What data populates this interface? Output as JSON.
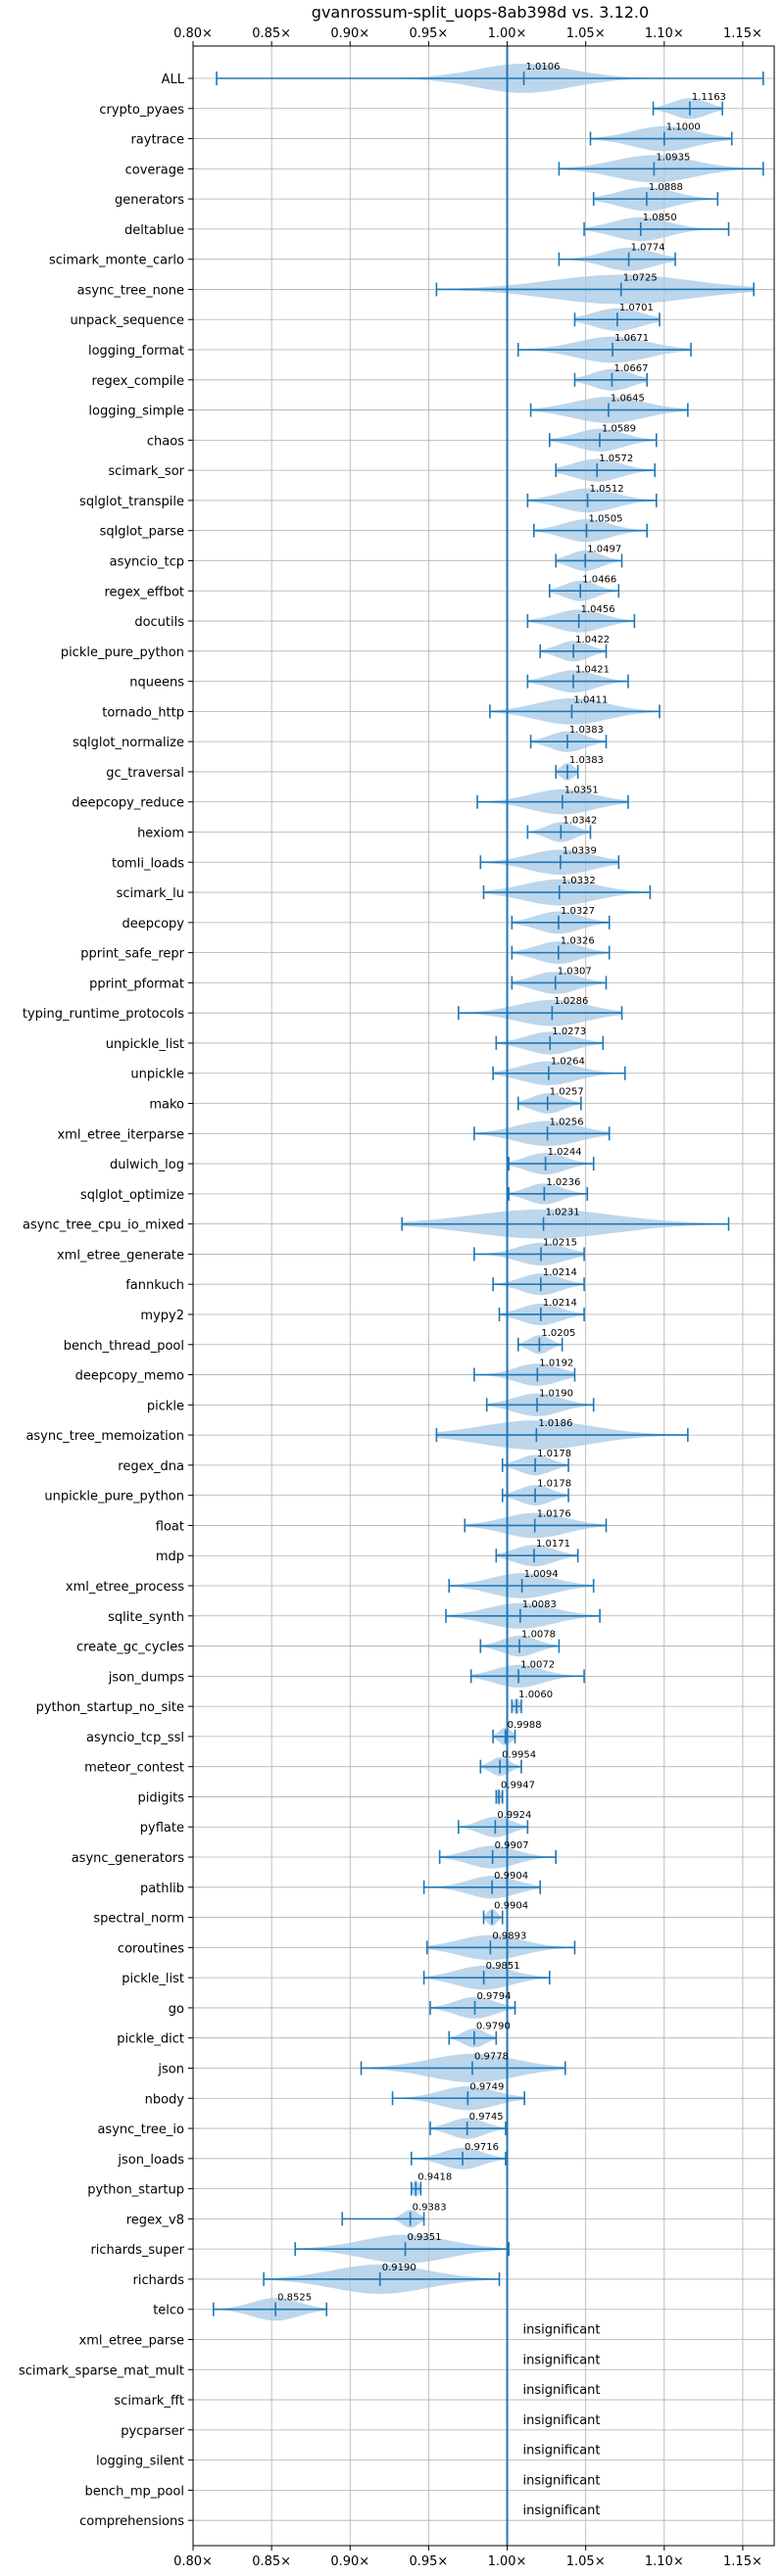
{
  "chart_data": {
    "type": "violin",
    "title": "gvanrossum-split_uops-8ab398d vs. 3.12.0",
    "xlim": [
      0.8,
      1.17
    ],
    "x_ticks": [
      0.8,
      0.85,
      0.9,
      0.95,
      1.0,
      1.05,
      1.1,
      1.15
    ],
    "x_tick_labels": [
      "0.80×",
      "0.85×",
      "0.90×",
      "0.95×",
      "1.00×",
      "1.05×",
      "1.10×",
      "1.15×"
    ],
    "reference_line": 1.0,
    "grid": true,
    "colors": {
      "violin": "#a6c8e6",
      "whisker": "#1f77b4",
      "reference": "#1f77b4",
      "grid": "#b0b0b0"
    },
    "rows": [
      {
        "name": "ALL",
        "value": 1.0106,
        "min": 0.815,
        "max": 1.163,
        "spread": 0.06,
        "label": "1.0106"
      },
      {
        "name": "crypto_pyaes",
        "value": 1.1163,
        "min": 1.093,
        "max": 1.137,
        "spread": 0.022,
        "label": "1.1163"
      },
      {
        "name": "raytrace",
        "value": 1.1,
        "min": 1.053,
        "max": 1.143,
        "spread": 0.04,
        "label": "1.1000"
      },
      {
        "name": "coverage",
        "value": 1.0935,
        "min": 1.033,
        "max": 1.163,
        "spread": 0.05,
        "label": "1.0935"
      },
      {
        "name": "generators",
        "value": 1.0888,
        "min": 1.055,
        "max": 1.134,
        "spread": 0.035,
        "label": "1.0888"
      },
      {
        "name": "deltablue",
        "value": 1.085,
        "min": 1.049,
        "max": 1.141,
        "spread": 0.035,
        "label": "1.0850"
      },
      {
        "name": "scimark_monte_carlo",
        "value": 1.0774,
        "min": 1.033,
        "max": 1.107,
        "spread": 0.032,
        "label": "1.0774"
      },
      {
        "name": "async_tree_none",
        "value": 1.0725,
        "min": 0.955,
        "max": 1.157,
        "spread": 0.09,
        "label": "1.0725"
      },
      {
        "name": "unpack_sequence",
        "value": 1.0701,
        "min": 1.043,
        "max": 1.097,
        "spread": 0.03,
        "label": "1.0701"
      },
      {
        "name": "logging_format",
        "value": 1.0671,
        "min": 1.007,
        "max": 1.117,
        "spread": 0.045,
        "label": "1.0671"
      },
      {
        "name": "regex_compile",
        "value": 1.0667,
        "min": 1.043,
        "max": 1.089,
        "spread": 0.025,
        "label": "1.0667"
      },
      {
        "name": "logging_simple",
        "value": 1.0645,
        "min": 1.015,
        "max": 1.115,
        "spread": 0.045,
        "label": "1.0645"
      },
      {
        "name": "chaos",
        "value": 1.0589,
        "min": 1.027,
        "max": 1.095,
        "spread": 0.03,
        "label": "1.0589"
      },
      {
        "name": "scimark_sor",
        "value": 1.0572,
        "min": 1.031,
        "max": 1.094,
        "spread": 0.03,
        "label": "1.0572"
      },
      {
        "name": "sqlglot_transpile",
        "value": 1.0512,
        "min": 1.013,
        "max": 1.095,
        "spread": 0.035,
        "label": "1.0512"
      },
      {
        "name": "sqlglot_parse",
        "value": 1.0505,
        "min": 1.017,
        "max": 1.089,
        "spread": 0.03,
        "label": "1.0505"
      },
      {
        "name": "asyncio_tcp",
        "value": 1.0497,
        "min": 1.031,
        "max": 1.073,
        "spread": 0.02,
        "label": "1.0497"
      },
      {
        "name": "regex_effbot",
        "value": 1.0466,
        "min": 1.027,
        "max": 1.071,
        "spread": 0.02,
        "label": "1.0466"
      },
      {
        "name": "docutils",
        "value": 1.0456,
        "min": 1.013,
        "max": 1.081,
        "spread": 0.03,
        "label": "1.0456"
      },
      {
        "name": "pickle_pure_python",
        "value": 1.0422,
        "min": 1.021,
        "max": 1.063,
        "spread": 0.02,
        "label": "1.0422"
      },
      {
        "name": "nqueens",
        "value": 1.0421,
        "min": 1.013,
        "max": 1.077,
        "spread": 0.028,
        "label": "1.0421"
      },
      {
        "name": "tornado_http",
        "value": 1.0411,
        "min": 0.989,
        "max": 1.097,
        "spread": 0.045,
        "label": "1.0411"
      },
      {
        "name": "sqlglot_normalize",
        "value": 1.0383,
        "min": 1.015,
        "max": 1.063,
        "spread": 0.022,
        "label": "1.0383"
      },
      {
        "name": "gc_traversal",
        "value": 1.0383,
        "min": 1.031,
        "max": 1.045,
        "spread": 0.008,
        "label": "1.0383"
      },
      {
        "name": "deepcopy_reduce",
        "value": 1.0351,
        "min": 0.981,
        "max": 1.077,
        "spread": 0.04,
        "label": "1.0351"
      },
      {
        "name": "hexiom",
        "value": 1.0342,
        "min": 1.013,
        "max": 1.053,
        "spread": 0.018,
        "label": "1.0342"
      },
      {
        "name": "tomli_loads",
        "value": 1.0339,
        "min": 0.983,
        "max": 1.071,
        "spread": 0.04,
        "label": "1.0339"
      },
      {
        "name": "scimark_lu",
        "value": 1.0332,
        "min": 0.985,
        "max": 1.091,
        "spread": 0.045,
        "label": "1.0332"
      },
      {
        "name": "deepcopy",
        "value": 1.0327,
        "min": 1.003,
        "max": 1.065,
        "spread": 0.028,
        "label": "1.0327"
      },
      {
        "name": "pprint_safe_repr",
        "value": 1.0326,
        "min": 1.003,
        "max": 1.065,
        "spread": 0.028,
        "label": "1.0326"
      },
      {
        "name": "pprint_pformat",
        "value": 1.0307,
        "min": 1.003,
        "max": 1.063,
        "spread": 0.028,
        "label": "1.0307"
      },
      {
        "name": "typing_runtime_protocols",
        "value": 1.0286,
        "min": 0.969,
        "max": 1.073,
        "spread": 0.045,
        "label": "1.0286"
      },
      {
        "name": "unpickle_list",
        "value": 1.0273,
        "min": 0.993,
        "max": 1.061,
        "spread": 0.03,
        "label": "1.0273"
      },
      {
        "name": "unpickle",
        "value": 1.0264,
        "min": 0.991,
        "max": 1.075,
        "spread": 0.035,
        "label": "1.0264"
      },
      {
        "name": "mako",
        "value": 1.0257,
        "min": 1.007,
        "max": 1.047,
        "spread": 0.02,
        "label": "1.0257"
      },
      {
        "name": "xml_etree_iterparse",
        "value": 1.0256,
        "min": 0.979,
        "max": 1.065,
        "spread": 0.04,
        "label": "1.0256"
      },
      {
        "name": "dulwich_log",
        "value": 1.0244,
        "min": 1.001,
        "max": 1.055,
        "spread": 0.025,
        "label": "1.0244"
      },
      {
        "name": "sqlglot_optimize",
        "value": 1.0236,
        "min": 1.001,
        "max": 1.051,
        "spread": 0.022,
        "label": "1.0236"
      },
      {
        "name": "async_tree_cpu_io_mixed",
        "value": 1.0231,
        "min": 0.933,
        "max": 1.141,
        "spread": 0.09,
        "label": "1.0231"
      },
      {
        "name": "xml_etree_generate",
        "value": 1.0215,
        "min": 0.979,
        "max": 1.049,
        "spread": 0.03,
        "label": "1.0215"
      },
      {
        "name": "fannkuch",
        "value": 1.0214,
        "min": 0.991,
        "max": 1.049,
        "spread": 0.025,
        "label": "1.0214"
      },
      {
        "name": "mypy2",
        "value": 1.0214,
        "min": 0.995,
        "max": 1.049,
        "spread": 0.025,
        "label": "1.0214"
      },
      {
        "name": "bench_thread_pool",
        "value": 1.0205,
        "min": 1.007,
        "max": 1.035,
        "spread": 0.013,
        "label": "1.0205"
      },
      {
        "name": "deepcopy_memo",
        "value": 1.0192,
        "min": 0.979,
        "max": 1.043,
        "spread": 0.028,
        "label": "1.0192"
      },
      {
        "name": "pickle",
        "value": 1.019,
        "min": 0.987,
        "max": 1.055,
        "spread": 0.03,
        "label": "1.0190"
      },
      {
        "name": "async_tree_memoization",
        "value": 1.0186,
        "min": 0.955,
        "max": 1.115,
        "spread": 0.07,
        "label": "1.0186"
      },
      {
        "name": "regex_dna",
        "value": 1.0178,
        "min": 0.997,
        "max": 1.039,
        "spread": 0.02,
        "label": "1.0178"
      },
      {
        "name": "unpickle_pure_python",
        "value": 1.0178,
        "min": 0.997,
        "max": 1.039,
        "spread": 0.02,
        "label": "1.0178"
      },
      {
        "name": "float",
        "value": 1.0176,
        "min": 0.973,
        "max": 1.063,
        "spread": 0.04,
        "label": "1.0176"
      },
      {
        "name": "mdp",
        "value": 1.0171,
        "min": 0.993,
        "max": 1.045,
        "spread": 0.025,
        "label": "1.0171"
      },
      {
        "name": "xml_etree_process",
        "value": 1.0094,
        "min": 0.963,
        "max": 1.055,
        "spread": 0.04,
        "label": "1.0094"
      },
      {
        "name": "sqlite_synth",
        "value": 1.0083,
        "min": 0.961,
        "max": 1.059,
        "spread": 0.042,
        "label": "1.0083"
      },
      {
        "name": "create_gc_cycles",
        "value": 1.0078,
        "min": 0.983,
        "max": 1.033,
        "spread": 0.022,
        "label": "1.0078"
      },
      {
        "name": "json_dumps",
        "value": 1.0072,
        "min": 0.977,
        "max": 1.049,
        "spread": 0.03,
        "label": "1.0072"
      },
      {
        "name": "python_startup_no_site",
        "value": 1.006,
        "min": 1.003,
        "max": 1.009,
        "spread": 0.004,
        "label": "1.0060"
      },
      {
        "name": "asyncio_tcp_ssl",
        "value": 0.9988,
        "min": 0.991,
        "max": 1.005,
        "spread": 0.008,
        "label": "0.9988"
      },
      {
        "name": "meteor_contest",
        "value": 0.9954,
        "min": 0.983,
        "max": 1.009,
        "spread": 0.012,
        "label": "0.9954"
      },
      {
        "name": "pidigits",
        "value": 0.9947,
        "min": 0.993,
        "max": 0.997,
        "spread": 0.003,
        "label": "0.9947"
      },
      {
        "name": "pyflate",
        "value": 0.9924,
        "min": 0.969,
        "max": 1.013,
        "spread": 0.02,
        "label": "0.9924"
      },
      {
        "name": "async_generators",
        "value": 0.9907,
        "min": 0.957,
        "max": 1.031,
        "spread": 0.03,
        "label": "0.9907"
      },
      {
        "name": "pathlib",
        "value": 0.9904,
        "min": 0.947,
        "max": 1.021,
        "spread": 0.03,
        "label": "0.9904"
      },
      {
        "name": "spectral_norm",
        "value": 0.9904,
        "min": 0.985,
        "max": 0.997,
        "spread": 0.006,
        "label": "0.9904"
      },
      {
        "name": "coroutines",
        "value": 0.9893,
        "min": 0.949,
        "max": 1.043,
        "spread": 0.04,
        "label": "0.9893"
      },
      {
        "name": "pickle_list",
        "value": 0.9851,
        "min": 0.947,
        "max": 1.027,
        "spread": 0.035,
        "label": "0.9851"
      },
      {
        "name": "go",
        "value": 0.9794,
        "min": 0.951,
        "max": 1.005,
        "spread": 0.025,
        "label": "0.9794"
      },
      {
        "name": "pickle_dict",
        "value": 0.979,
        "min": 0.963,
        "max": 0.993,
        "spread": 0.014,
        "label": "0.9790"
      },
      {
        "name": "json",
        "value": 0.9778,
        "min": 0.907,
        "max": 1.037,
        "spread": 0.055,
        "label": "0.9778"
      },
      {
        "name": "nbody",
        "value": 0.9749,
        "min": 0.927,
        "max": 1.011,
        "spread": 0.035,
        "label": "0.9749"
      },
      {
        "name": "async_tree_io",
        "value": 0.9745,
        "min": 0.951,
        "max": 0.999,
        "spread": 0.022,
        "label": "0.9745"
      },
      {
        "name": "json_loads",
        "value": 0.9716,
        "min": 0.939,
        "max": 0.999,
        "spread": 0.025,
        "label": "0.9716"
      },
      {
        "name": "python_startup",
        "value": 0.9418,
        "min": 0.939,
        "max": 0.945,
        "spread": 0.004,
        "label": "0.9418"
      },
      {
        "name": "regex_v8",
        "value": 0.9383,
        "min": 0.895,
        "max": 0.947,
        "spread": 0.01,
        "label": "0.9383"
      },
      {
        "name": "richards_super",
        "value": 0.9351,
        "min": 0.865,
        "max": 1.001,
        "spread": 0.055,
        "label": "0.9351"
      },
      {
        "name": "richards",
        "value": 0.919,
        "min": 0.845,
        "max": 0.995,
        "spread": 0.06,
        "label": "0.9190"
      },
      {
        "name": "telco",
        "value": 0.8525,
        "min": 0.813,
        "max": 0.885,
        "spread": 0.03,
        "label": "0.8525"
      },
      {
        "name": "xml_etree_parse",
        "value": null,
        "label": "insignificant"
      },
      {
        "name": "scimark_sparse_mat_mult",
        "value": null,
        "label": "insignificant"
      },
      {
        "name": "scimark_fft",
        "value": null,
        "label": "insignificant"
      },
      {
        "name": "pycparser",
        "value": null,
        "label": "insignificant"
      },
      {
        "name": "logging_silent",
        "value": null,
        "label": "insignificant"
      },
      {
        "name": "bench_mp_pool",
        "value": null,
        "label": "insignificant"
      },
      {
        "name": "comprehensions",
        "value": null,
        "label": "insignificant"
      }
    ]
  }
}
